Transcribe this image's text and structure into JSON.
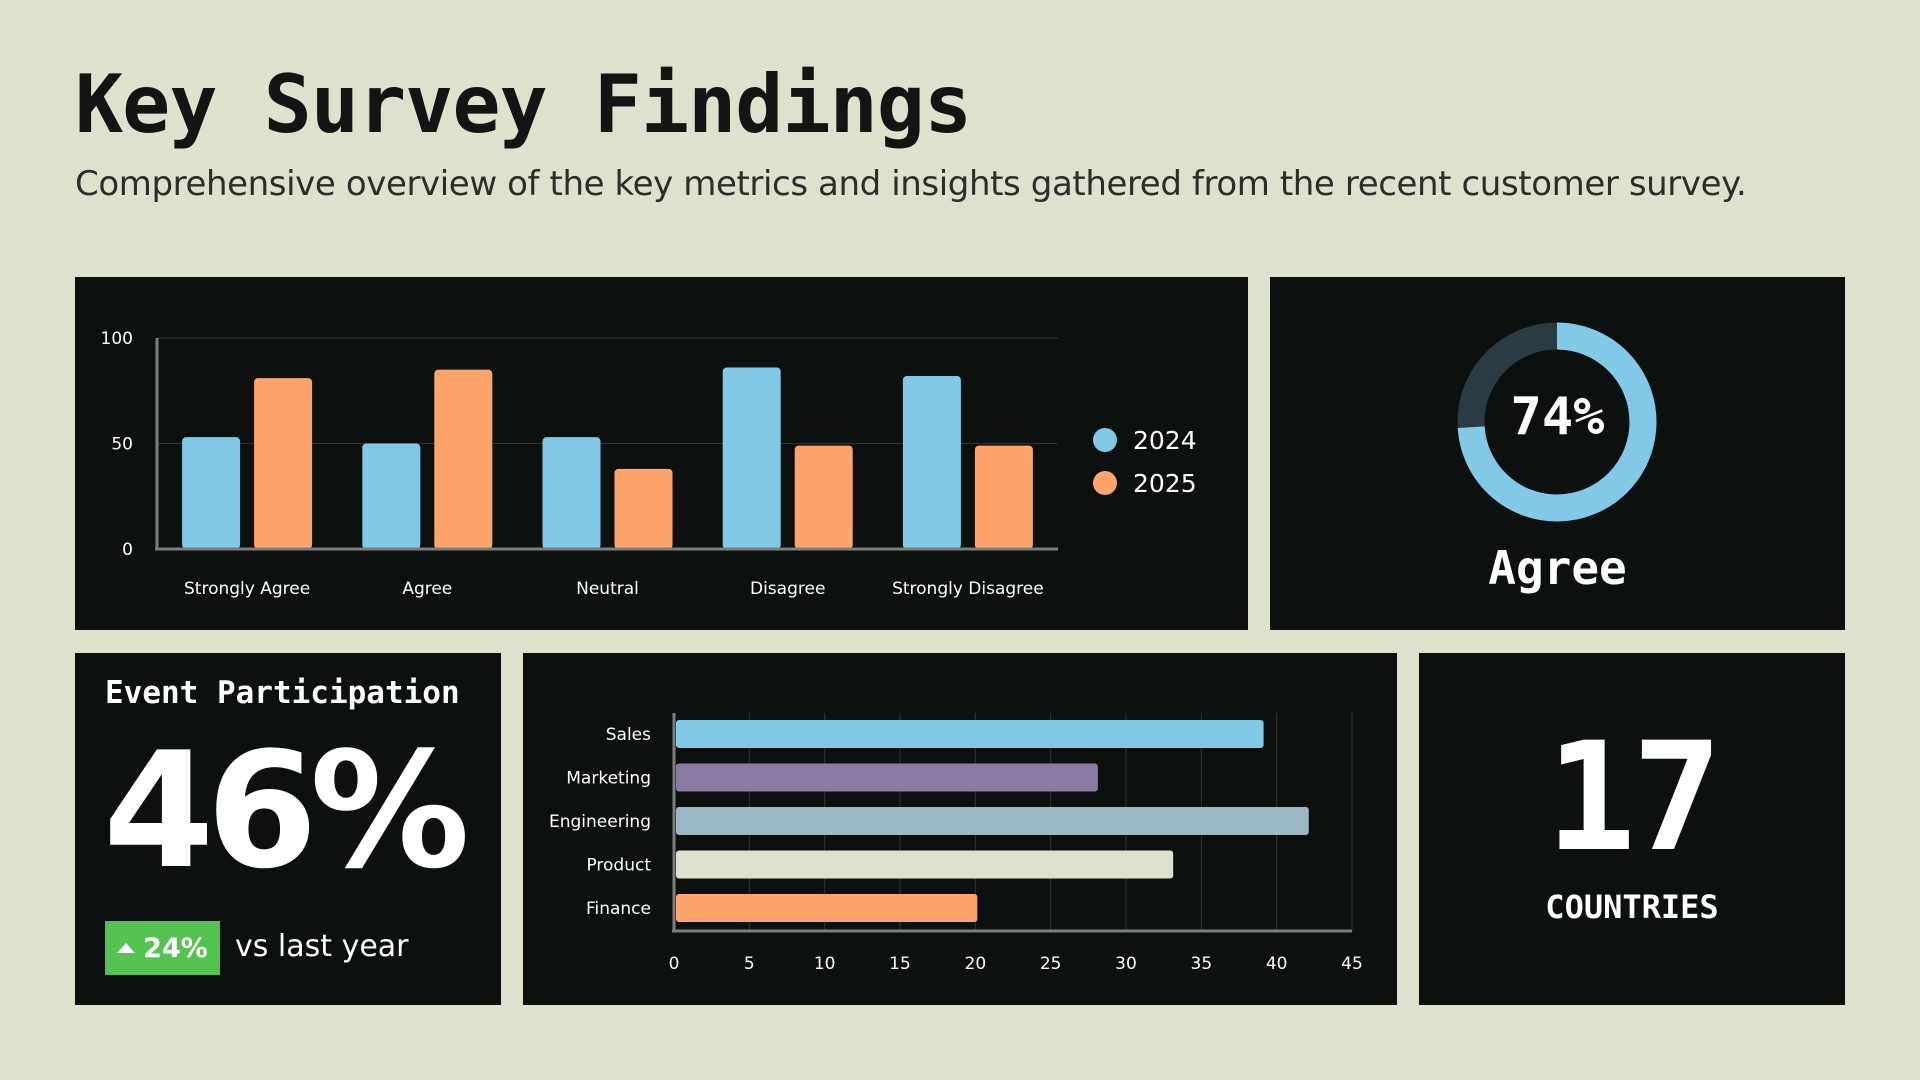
{
  "header": {
    "title": "Key Survey Findings",
    "subtitle": "Comprehensive overview of the key metrics and insights gathered from the recent customer survey."
  },
  "colors": {
    "background": "#dee1cd",
    "panel": "#0c100f",
    "blue": "#82c9e8",
    "orange": "#fda46d",
    "purple": "#8b7aa3",
    "slate": "#9bb7c4",
    "cream": "#dee1cd",
    "green": "#55c352",
    "donut_track": "#2b3b43"
  },
  "chart_data": [
    {
      "type": "bar",
      "categories": [
        "Strongly Agree",
        "Agree",
        "Neutral",
        "Disagree",
        "Strongly Disagree"
      ],
      "series": [
        {
          "name": "2024",
          "color": "#82c9e8",
          "values": [
            53,
            50,
            53,
            86,
            82
          ]
        },
        {
          "name": "2025",
          "color": "#fda46d",
          "values": [
            81,
            85,
            38,
            49,
            49
          ]
        }
      ],
      "yticks": [
        "0",
        "50",
        "100"
      ],
      "ylim": [
        0,
        100
      ],
      "grid": true,
      "legend": "right"
    },
    {
      "type": "pie",
      "style": "donut",
      "value": 74,
      "value_label": "74%",
      "label": "Agree"
    },
    {
      "type": "bar",
      "orientation": "horizontal",
      "categories": [
        "Sales",
        "Marketing",
        "Engineering",
        "Product",
        "Finance"
      ],
      "values": [
        39,
        28,
        42,
        33,
        20
      ],
      "colors": [
        "#82c9e8",
        "#8b7aa3",
        "#9bb7c4",
        "#dee1cd",
        "#fda46d"
      ],
      "xticks": [
        "0",
        "5",
        "10",
        "15",
        "20",
        "25",
        "30",
        "35",
        "40",
        "45"
      ],
      "xlim": [
        0,
        45
      ],
      "grid": true
    }
  ],
  "event": {
    "title": "Event Participation",
    "value": "46%",
    "change": "24%",
    "change_caption": "vs last year",
    "change_icon": "triangle-up-icon"
  },
  "countries": {
    "value": "17",
    "label": "COUNTRIES"
  }
}
